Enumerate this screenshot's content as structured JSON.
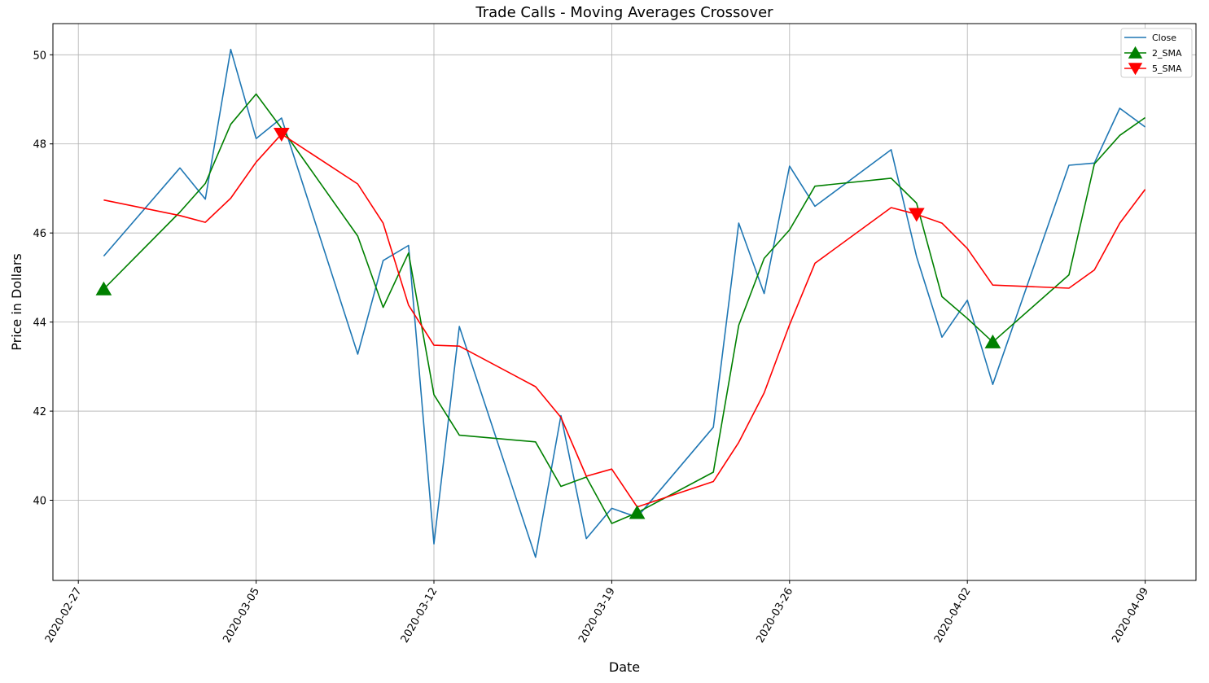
{
  "chart_data": {
    "type": "line",
    "title": "Trade Calls - Moving Averages Crossover",
    "xlabel": "Date",
    "ylabel": "Price in Dollars",
    "x_range": [
      "2020-02-26",
      "2020-04-11"
    ],
    "ylim": [
      38.2,
      50.7
    ],
    "y_ticks": [
      40,
      42,
      44,
      46,
      48,
      50
    ],
    "x_ticks": [
      "2020-02-27",
      "2020-03-05",
      "2020-03-12",
      "2020-03-19",
      "2020-03-26",
      "2020-04-02",
      "2020-04-09"
    ],
    "grid": true,
    "legend_position": "top-right",
    "dates": [
      "2020-02-28",
      "2020-03-02",
      "2020-03-03",
      "2020-03-04",
      "2020-03-05",
      "2020-03-06",
      "2020-03-09",
      "2020-03-10",
      "2020-03-11",
      "2020-03-12",
      "2020-03-13",
      "2020-03-16",
      "2020-03-17",
      "2020-03-18",
      "2020-03-19",
      "2020-03-20",
      "2020-03-23",
      "2020-03-24",
      "2020-03-25",
      "2020-03-26",
      "2020-03-27",
      "2020-03-30",
      "2020-03-31",
      "2020-04-01",
      "2020-04-02",
      "2020-04-03",
      "2020-04-06",
      "2020-04-07",
      "2020-04-08",
      "2020-04-09"
    ],
    "series": [
      {
        "name": "Close",
        "color": "#1f77b4",
        "values": [
          45.48,
          47.46,
          46.76,
          50.12,
          48.12,
          48.58,
          43.28,
          45.38,
          45.72,
          39.02,
          43.9,
          38.72,
          41.9,
          39.14,
          39.82,
          39.62,
          41.64,
          46.22,
          44.64,
          47.5,
          46.6,
          47.87,
          45.47,
          43.66,
          44.49,
          42.6,
          47.52,
          47.57,
          48.8,
          48.38
        ]
      },
      {
        "name": "2_SMA",
        "color": "#008000",
        "values": [
          44.74,
          46.47,
          47.11,
          48.44,
          49.12,
          48.35,
          45.93,
          44.33,
          45.55,
          42.37,
          41.46,
          41.31,
          40.31,
          40.52,
          39.48,
          39.72,
          40.63,
          43.93,
          45.43,
          46.07,
          47.05,
          47.23,
          46.67,
          44.57,
          44.08,
          43.55,
          45.06,
          47.55,
          48.19,
          48.59
        ]
      },
      {
        "name": "5_SMA",
        "color": "#ff0000",
        "values": [
          46.74,
          46.39,
          46.24,
          46.78,
          47.59,
          48.22,
          47.1,
          46.22,
          44.38,
          43.48,
          43.46,
          42.55,
          41.86,
          40.54,
          40.7,
          39.85,
          40.42,
          41.3,
          42.41,
          43.94,
          45.32,
          46.57,
          46.42,
          46.22,
          45.65,
          44.83,
          44.76,
          45.17,
          46.22,
          46.98
        ]
      }
    ],
    "markers": [
      {
        "name": "2_SMA",
        "symbol": "triangle-up",
        "color": "#008000",
        "points": [
          {
            "x": "2020-02-28",
            "y": 44.74
          },
          {
            "x": "2020-03-20",
            "y": 39.72
          },
          {
            "x": "2020-04-03",
            "y": 43.55
          }
        ]
      },
      {
        "name": "5_SMA",
        "symbol": "triangle-down",
        "color": "#ff0000",
        "points": [
          {
            "x": "2020-03-06",
            "y": 48.22
          },
          {
            "x": "2020-03-31",
            "y": 46.42
          }
        ]
      }
    ],
    "legend": [
      {
        "label": "Close",
        "color": "#1f77b4",
        "symbol": "line"
      },
      {
        "label": "2_SMA",
        "color": "#008000",
        "symbol": "triangle-up"
      },
      {
        "label": "5_SMA",
        "color": "#ff0000",
        "symbol": "triangle-down"
      }
    ]
  }
}
